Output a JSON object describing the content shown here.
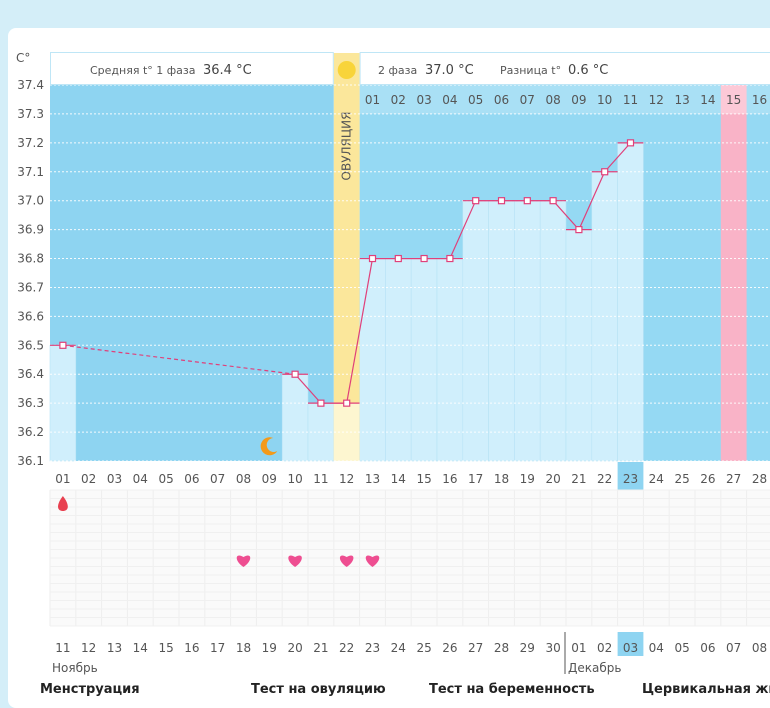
{
  "chart_data": {
    "type": "line",
    "ylabel": "C°",
    "ylim": [
      36.1,
      37.4
    ],
    "yticks": [
      "36.1",
      "36.2",
      "36.3",
      "36.4",
      "36.5",
      "36.6",
      "36.7",
      "36.8",
      "36.9",
      "37.0",
      "37.1",
      "37.2",
      "37.3",
      "37.4"
    ],
    "cycle_days": [
      "01",
      "02",
      "03",
      "04",
      "05",
      "06",
      "07",
      "08",
      "09",
      "10",
      "11",
      "12",
      "13",
      "14",
      "15",
      "16",
      "17",
      "18",
      "19",
      "20",
      "21",
      "22",
      "23",
      "24",
      "25",
      "26",
      "27",
      "28"
    ],
    "phase2_days": [
      "01",
      "02",
      "03",
      "04",
      "05",
      "06",
      "07",
      "08",
      "09",
      "10",
      "11",
      "12",
      "13",
      "14",
      "15",
      "16"
    ],
    "phase2_start_index": 12,
    "ovulation_index": 11,
    "ovulation_label": "ОВУЛЯЦИЯ",
    "current_day_index": 22,
    "expected_period_index": 26,
    "calendar_dates": [
      "11",
      "12",
      "13",
      "14",
      "15",
      "16",
      "17",
      "18",
      "19",
      "20",
      "21",
      "22",
      "23",
      "24",
      "25",
      "26",
      "27",
      "28",
      "29",
      "30",
      "01",
      "02",
      "03",
      "04",
      "05",
      "06",
      "07",
      "08"
    ],
    "weekend_indices": [
      3,
      4,
      10,
      11,
      17,
      18,
      24,
      25
    ],
    "month_labels": [
      {
        "index": 0,
        "name": "Ноябрь"
      },
      {
        "index": 20,
        "name": "Декабрь"
      }
    ],
    "temperatures": [
      {
        "day_index": 0,
        "value": 36.5
      },
      {
        "day_index": 9,
        "value": 36.4
      },
      {
        "day_index": 10,
        "value": 36.3
      },
      {
        "day_index": 11,
        "value": 36.3
      },
      {
        "day_index": 12,
        "value": 36.8
      },
      {
        "day_index": 13,
        "value": 36.8
      },
      {
        "day_index": 14,
        "value": 36.8
      },
      {
        "day_index": 15,
        "value": 36.8
      },
      {
        "day_index": 16,
        "value": 37.0
      },
      {
        "day_index": 17,
        "value": 37.0
      },
      {
        "day_index": 18,
        "value": 37.0
      },
      {
        "day_index": 19,
        "value": 37.0
      },
      {
        "day_index": 20,
        "value": 36.9
      },
      {
        "day_index": 21,
        "value": 37.1
      },
      {
        "day_index": 22,
        "value": 37.2
      }
    ],
    "highlighted_point_index": 15,
    "menstruation_days": [
      0
    ],
    "intercourse_days": [
      7,
      9,
      11,
      12
    ],
    "moon_day_index": 8,
    "phase1": {
      "label": "Средняя t° 1 фаза",
      "value": "36.4 °C"
    },
    "phase2": {
      "label": "2 фаза",
      "value": "37.0 °C"
    },
    "difference": {
      "label": "Разница t°",
      "value": "0.6 °C"
    },
    "legend": [
      "Менструация",
      "Тест на овуляцию",
      "Тест на беременность",
      "Цервикальная жи"
    ]
  },
  "colors": {
    "phase1_bg": "#8ed4f1",
    "phase2_bg": "#95d9f3",
    "bar_fill": "#d0effc",
    "ovulation": "#fbe79b",
    "period": "#f9b3c7",
    "line": "#e0407a",
    "current_day": "#8ed4f1",
    "weekend_text": "#e0405a",
    "heart": "#ee4e91",
    "drop": "#e84050",
    "moon": "#f39a1a",
    "sun": "#f8d43a"
  }
}
